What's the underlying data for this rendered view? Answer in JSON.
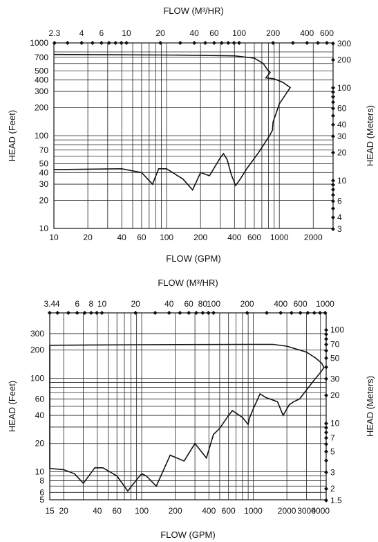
{
  "chart_data": [
    {
      "type": "line",
      "subtype": "pump-performance-envelope",
      "scale": "log-log",
      "top_axis_title": "FLOW (M³/HR)",
      "bottom_axis_title": "FLOW (GPM)",
      "left_axis_title": "HEAD (Feet)",
      "right_axis_title": "HEAD (Meters)",
      "xlim": [
        10,
        3000
      ],
      "ylim": [
        10,
        1000
      ],
      "x_ticks": [
        10,
        20,
        40,
        60,
        100,
        200,
        400,
        600,
        1000,
        2000
      ],
      "x_tick_labels": [
        "10",
        "20",
        "40",
        "60",
        "100",
        "200",
        "400",
        "600",
        "1000",
        "2000"
      ],
      "x_grid": [
        10,
        20,
        30,
        40,
        50,
        60,
        70,
        80,
        90,
        100,
        200,
        300,
        400,
        500,
        600,
        700,
        800,
        900,
        1000,
        2000
      ],
      "y_ticks": [
        10,
        20,
        30,
        40,
        50,
        70,
        100,
        200,
        300,
        400,
        500,
        700,
        1000
      ],
      "y_tick_labels": [
        "10",
        "20",
        "30",
        "40",
        "50",
        "70",
        "100",
        "200",
        "300",
        "400",
        "500",
        "700",
        "1000"
      ],
      "y_grid": [
        20,
        30,
        40,
        50,
        60,
        70,
        80,
        90,
        100,
        200,
        300,
        400,
        500,
        600,
        700,
        800
      ],
      "top_ticks_m3hr": [
        2.3,
        4,
        6,
        10,
        20,
        40,
        60,
        100,
        200,
        400,
        600
      ],
      "top_tick_labels": [
        "2.3",
        "4",
        "6",
        "10",
        "20",
        "40",
        "60",
        "100",
        "200",
        "400",
        "600"
      ],
      "top_minor_m3hr": [
        3,
        5,
        7,
        8,
        9,
        30,
        50,
        70,
        80,
        90,
        300,
        500,
        700
      ],
      "right_ticks_m": [
        3,
        4,
        6,
        10,
        20,
        30,
        40,
        60,
        100,
        200,
        300
      ],
      "right_tick_labels": [
        "3",
        "4",
        "6",
        "10",
        "20",
        "30",
        "40",
        "60",
        "100",
        "200",
        "300"
      ],
      "right_minor_m": [
        5,
        7,
        8,
        9,
        50,
        70,
        80,
        90
      ],
      "series": [
        {
          "points": [
            [
              10,
              750
            ],
            [
              30,
              745
            ],
            [
              100,
              740
            ],
            [
              200,
              735
            ],
            [
              400,
              725
            ],
            [
              600,
              685
            ],
            [
              720,
              600
            ],
            [
              780,
              520
            ],
            [
              830,
              480
            ],
            [
              760,
              420
            ],
            [
              900,
              410
            ],
            [
              1080,
              375
            ],
            [
              1250,
              330
            ],
            [
              1000,
              220
            ],
            [
              880,
              140
            ],
            [
              870,
              115
            ],
            [
              820,
              100
            ],
            [
              650,
              65
            ],
            [
              520,
              45
            ],
            [
              450,
              34
            ],
            [
              410,
              29
            ],
            [
              375,
              38
            ],
            [
              345,
              55
            ],
            [
              320,
              64
            ],
            [
              300,
              58
            ],
            [
              240,
              37
            ],
            [
              200,
              40
            ],
            [
              170,
              26
            ],
            [
              140,
              34
            ],
            [
              100,
              44
            ],
            [
              85,
              44
            ],
            [
              75,
              30
            ],
            [
              60,
              40
            ],
            [
              40,
              44
            ],
            [
              10,
              43
            ]
          ]
        }
      ]
    },
    {
      "type": "line",
      "subtype": "pump-performance-envelope",
      "scale": "log-log",
      "top_axis_title": "FLOW (M³/HR)",
      "bottom_axis_title": "FLOW (GPM)",
      "left_axis_title": "HEAD (Feet)",
      "right_axis_title": "HEAD (Meters)",
      "xlim": [
        15,
        4500
      ],
      "ylim": [
        5,
        500
      ],
      "x_ticks": [
        15,
        20,
        40,
        60,
        100,
        200,
        400,
        600,
        1000,
        2000,
        3000,
        4000
      ],
      "x_tick_labels": [
        "15",
        "20",
        "40",
        "60",
        "100",
        "200",
        "400",
        "600",
        "1000",
        "2000",
        "3000",
        "4000"
      ],
      "x_grid": [
        15,
        20,
        30,
        40,
        50,
        60,
        70,
        80,
        90,
        100,
        200,
        300,
        400,
        500,
        600,
        700,
        800,
        900,
        1000,
        2000,
        3000,
        4000
      ],
      "y_ticks": [
        5,
        6,
        8,
        10,
        20,
        40,
        60,
        100,
        200,
        300
      ],
      "y_tick_labels": [
        "5",
        "6",
        "8",
        "10",
        "20",
        "40",
        "60",
        "100",
        "200",
        "300"
      ],
      "y_grid": [
        6,
        7,
        8,
        9,
        10,
        20,
        30,
        40,
        50,
        60,
        70,
        80,
        90,
        100,
        200,
        300
      ],
      "top_ticks_m3hr": [
        3.4,
        4,
        6,
        8,
        10,
        20,
        40,
        60,
        80,
        100,
        200,
        400,
        600,
        1000
      ],
      "top_tick_labels": [
        "3.4",
        "4",
        "6",
        "8",
        "10",
        "20",
        "40",
        "60",
        "80",
        "100",
        "200",
        "400",
        "600",
        "1000"
      ],
      "top_minor_m3hr": [
        5,
        7,
        9,
        30,
        50,
        70,
        90,
        300,
        500,
        700,
        800,
        900
      ],
      "right_ticks_m": [
        1.5,
        2,
        3,
        5,
        7,
        10,
        20,
        30,
        50,
        70,
        100
      ],
      "right_tick_labels": [
        "1.5",
        "2",
        "3",
        "5",
        "7",
        "10",
        "20",
        "30",
        "50",
        "70",
        "100"
      ],
      "right_minor_m": [
        4,
        6,
        8,
        9,
        40,
        60,
        80,
        90
      ],
      "series": [
        {
          "points": [
            [
              15,
              10.8
            ],
            [
              15,
              225
            ],
            [
              100,
              228
            ],
            [
              1000,
              230
            ],
            [
              1500,
              230
            ],
            [
              2000,
              220
            ],
            [
              3000,
              190
            ],
            [
              3600,
              165
            ],
            [
              4100,
              145
            ],
            [
              4300,
              130
            ],
            [
              4000,
              115
            ],
            [
              3500,
              95
            ],
            [
              3000,
              75
            ],
            [
              2600,
              60
            ],
            [
              2300,
              56
            ],
            [
              2100,
              52
            ],
            [
              1850,
              40
            ],
            [
              1650,
              56
            ],
            [
              1400,
              60
            ],
            [
              1300,
              62
            ],
            [
              1150,
              68
            ],
            [
              1000,
              47
            ],
            [
              920,
              37
            ],
            [
              900,
              32
            ],
            [
              800,
              38
            ],
            [
              650,
              45
            ],
            [
              600,
              40
            ],
            [
              500,
              29
            ],
            [
              440,
              25
            ],
            [
              380,
              14
            ],
            [
              300,
              20
            ],
            [
              240,
              13
            ],
            [
              180,
              15
            ],
            [
              135,
              7
            ],
            [
              110,
              9
            ],
            [
              100,
              9.5
            ],
            [
              90,
              8.2
            ],
            [
              75,
              6.2
            ],
            [
              60,
              9
            ],
            [
              45,
              11
            ],
            [
              38,
              11
            ],
            [
              30,
              7.5
            ],
            [
              25,
              9.5
            ],
            [
              20,
              10.5
            ],
            [
              15,
              10.8
            ]
          ]
        }
      ]
    }
  ]
}
